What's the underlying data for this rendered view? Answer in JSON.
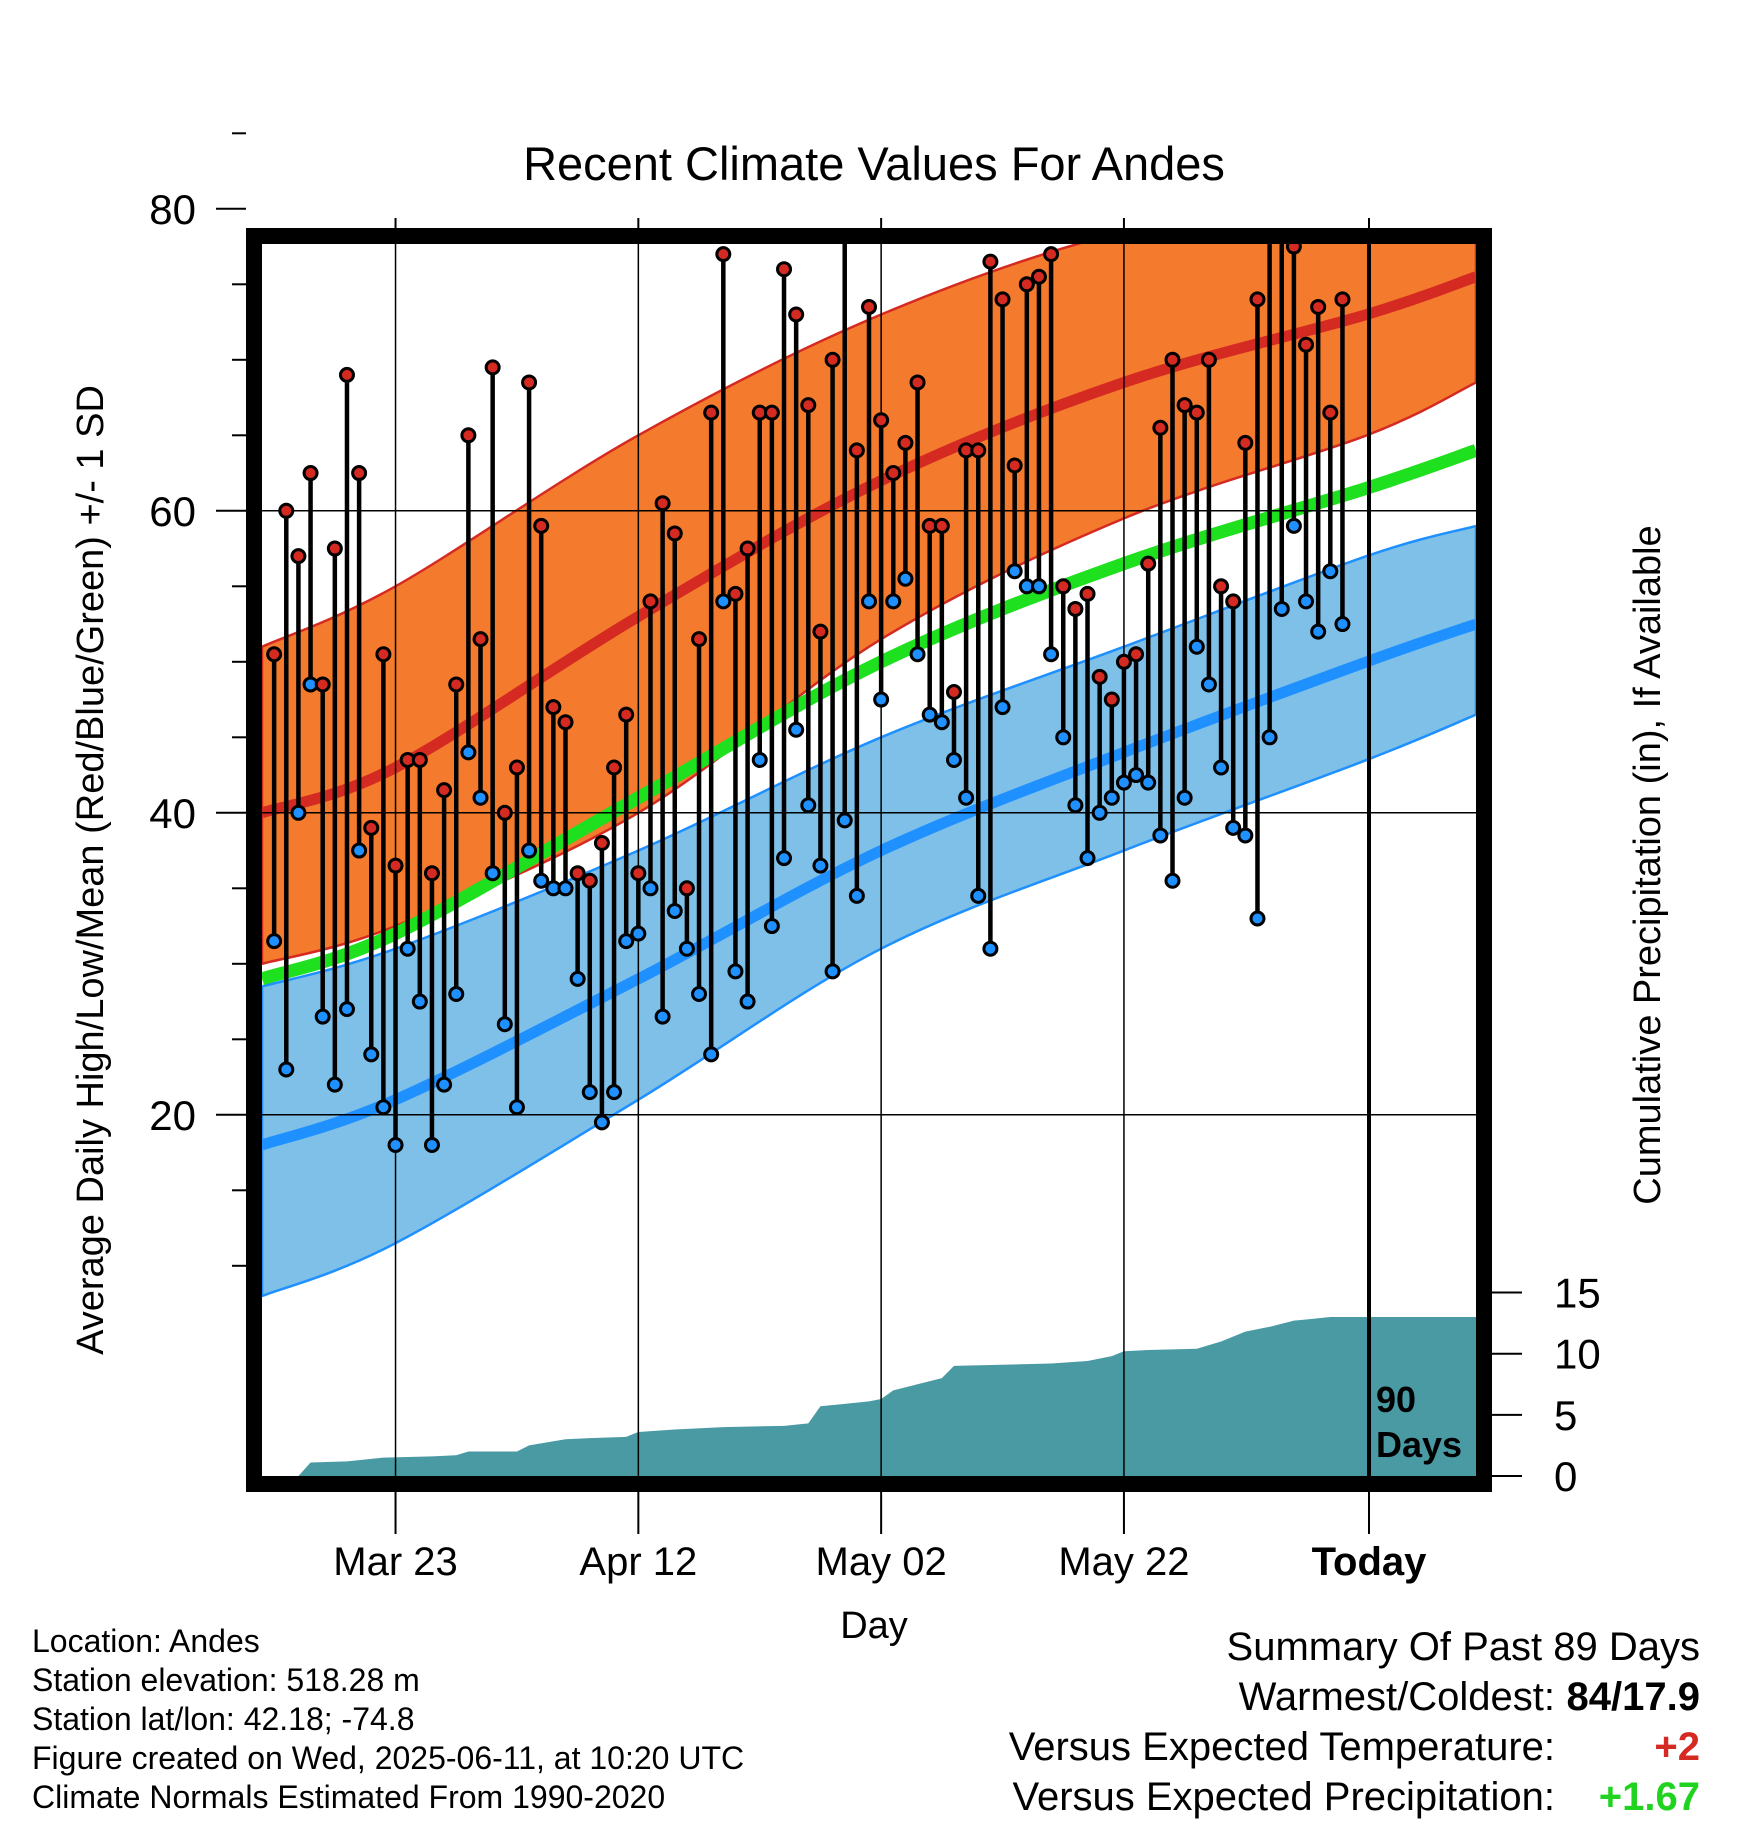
{
  "chart_data": {
    "type": "line",
    "title": "Recent Climate Values For Andes",
    "xlabel": "Day",
    "ylabel": "Average Daily High/Low/Mean (Red/Blue/Green) +/- 1 SD",
    "y2label": "Cumulative Precipitation (in), If Available",
    "ylim": [
      8,
      89
    ],
    "y2lim": [
      0,
      53
    ],
    "yticks": [
      20,
      40,
      60,
      80
    ],
    "y2ticks": [
      0,
      5,
      10,
      15
    ],
    "xlim": [
      "Mar 12",
      "Jun 20"
    ],
    "x_tick_labels": [
      "Mar 23",
      "Apr 12",
      "May 02",
      "May 22",
      "Today"
    ],
    "today_label": "90\nDays",
    "grid": true,
    "colors": {
      "high_band": "#f47b2e",
      "high_line": "#d52a22",
      "low_band": "#7fc0e8",
      "low_line": "#1e90ff",
      "mean_line": "#1ee01e",
      "precip": "#4a9aa4",
      "high_dot": "#d52a22",
      "low_dot": "#1e90ff"
    },
    "normal_high": [
      {
        "date": "Mar 12",
        "mean": 40.0,
        "lower": 30.0,
        "upper": 51.0
      },
      {
        "date": "Mar 23",
        "mean": 43.0,
        "lower": 32.5,
        "upper": 55.0
      },
      {
        "date": "Apr 12",
        "mean": 53.0,
        "lower": 40.0,
        "upper": 65.0
      },
      {
        "date": "May 02",
        "mean": 62.0,
        "lower": 51.5,
        "upper": 73.0
      },
      {
        "date": "May 22",
        "mean": 68.5,
        "lower": 59.5,
        "upper": 78.5
      },
      {
        "date": "Jun 11",
        "mean": 73.0,
        "lower": 65.0,
        "upper": 81.0
      },
      {
        "date": "Jun 20",
        "mean": 75.5,
        "lower": 68.5,
        "upper": 82.5
      }
    ],
    "normal_low": [
      {
        "date": "Mar 12",
        "mean": 18.0,
        "lower": 8.0,
        "upper": 28.5
      },
      {
        "date": "Mar 23",
        "mean": 21.0,
        "lower": 11.5,
        "upper": 31.0
      },
      {
        "date": "Apr 12",
        "mean": 29.0,
        "lower": 21.0,
        "upper": 37.5
      },
      {
        "date": "May 02",
        "mean": 37.5,
        "lower": 31.0,
        "upper": 45.0
      },
      {
        "date": "May 22",
        "mean": 44.0,
        "lower": 37.5,
        "upper": 51.0
      },
      {
        "date": "Jun 11",
        "mean": 50.0,
        "lower": 43.5,
        "upper": 57.0
      },
      {
        "date": "Jun 20",
        "mean": 52.5,
        "lower": 46.5,
        "upper": 59.0
      }
    ],
    "normal_mean": [
      {
        "date": "Mar 12",
        "value": 29.0
      },
      {
        "date": "Mar 23",
        "value": 32.0
      },
      {
        "date": "Apr 12",
        "value": 41.0
      },
      {
        "date": "May 02",
        "value": 50.0
      },
      {
        "date": "May 22",
        "value": 56.5
      },
      {
        "date": "Jun 11",
        "value": 61.5
      },
      {
        "date": "Jun 20",
        "value": 64.0
      }
    ],
    "daily": [
      {
        "date": "Mar 13",
        "high": 50.5,
        "low": 31.5
      },
      {
        "date": "Mar 14",
        "high": 60.0,
        "low": 23.0
      },
      {
        "date": "Mar 15",
        "high": 57.0,
        "low": 40.0
      },
      {
        "date": "Mar 16",
        "high": 62.5,
        "low": 48.5
      },
      {
        "date": "Mar 17",
        "high": 48.5,
        "low": 26.5
      },
      {
        "date": "Mar 18",
        "high": 57.5,
        "low": 22.0
      },
      {
        "date": "Mar 19",
        "high": 69.0,
        "low": 27.0
      },
      {
        "date": "Mar 20",
        "high": 62.5,
        "low": 37.5
      },
      {
        "date": "Mar 21",
        "high": 39.0,
        "low": 24.0
      },
      {
        "date": "Mar 22",
        "high": 50.5,
        "low": 20.5
      },
      {
        "date": "Mar 23",
        "high": 36.5,
        "low": 18.0
      },
      {
        "date": "Mar 24",
        "high": 43.5,
        "low": 31.0
      },
      {
        "date": "Mar 25",
        "high": 43.5,
        "low": 27.5
      },
      {
        "date": "Mar 26",
        "high": 36.0,
        "low": 18.0
      },
      {
        "date": "Mar 27",
        "high": 41.5,
        "low": 22.0
      },
      {
        "date": "Mar 28",
        "high": 48.5,
        "low": 28.0
      },
      {
        "date": "Mar 29",
        "high": 65.0,
        "low": 44.0
      },
      {
        "date": "Mar 30",
        "high": 51.5,
        "low": 41.0
      },
      {
        "date": "Mar 31",
        "high": 69.5,
        "low": 36.0
      },
      {
        "date": "Apr 01",
        "high": 40.0,
        "low": 26.0
      },
      {
        "date": "Apr 02",
        "high": 43.0,
        "low": 20.5
      },
      {
        "date": "Apr 03",
        "high": 68.5,
        "low": 37.5
      },
      {
        "date": "Apr 04",
        "high": 59.0,
        "low": 35.5
      },
      {
        "date": "Apr 05",
        "high": 47.0,
        "low": 35.0
      },
      {
        "date": "Apr 06",
        "high": 46.0,
        "low": 35.0
      },
      {
        "date": "Apr 07",
        "high": 36.0,
        "low": 29.0
      },
      {
        "date": "Apr 08",
        "high": 35.5,
        "low": 21.5
      },
      {
        "date": "Apr 09",
        "high": 38.0,
        "low": 19.5
      },
      {
        "date": "Apr 10",
        "high": 43.0,
        "low": 21.5
      },
      {
        "date": "Apr 11",
        "high": 46.5,
        "low": 31.5
      },
      {
        "date": "Apr 12",
        "high": 36.0,
        "low": 32.0
      },
      {
        "date": "Apr 13",
        "high": 54.0,
        "low": 35.0
      },
      {
        "date": "Apr 14",
        "high": 60.5,
        "low": 26.5
      },
      {
        "date": "Apr 15",
        "high": 58.5,
        "low": 33.5
      },
      {
        "date": "Apr 16",
        "high": 35.0,
        "low": 31.0
      },
      {
        "date": "Apr 17",
        "high": 51.5,
        "low": 28.0
      },
      {
        "date": "Apr 18",
        "high": 66.5,
        "low": 24.0
      },
      {
        "date": "Apr 19",
        "high": 77.0,
        "low": 54.0
      },
      {
        "date": "Apr 20",
        "high": 54.5,
        "low": 29.5
      },
      {
        "date": "Apr 21",
        "high": 57.5,
        "low": 27.5
      },
      {
        "date": "Apr 22",
        "high": 66.5,
        "low": 43.5
      },
      {
        "date": "Apr 23",
        "high": 66.5,
        "low": 32.5
      },
      {
        "date": "Apr 24",
        "high": 76.0,
        "low": 37.0
      },
      {
        "date": "Apr 25",
        "high": 73.0,
        "low": 45.5
      },
      {
        "date": "Apr 26",
        "high": 67.0,
        "low": 40.5
      },
      {
        "date": "Apr 27",
        "high": 52.0,
        "low": 36.5
      },
      {
        "date": "Apr 28",
        "high": 70.0,
        "low": 29.5
      },
      {
        "date": "Apr 29",
        "high": 79.0,
        "low": 39.5
      },
      {
        "date": "Apr 30",
        "high": 64.0,
        "low": 34.5
      },
      {
        "date": "May 01",
        "high": 73.5,
        "low": 54.0
      },
      {
        "date": "May 02",
        "high": 66.0,
        "low": 47.5
      },
      {
        "date": "May 03",
        "high": 62.5,
        "low": 54.0
      },
      {
        "date": "May 04",
        "high": 64.5,
        "low": 55.5
      },
      {
        "date": "May 05",
        "high": 68.5,
        "low": 50.5
      },
      {
        "date": "May 06",
        "high": 59.0,
        "low": 46.5
      },
      {
        "date": "May 07",
        "high": 59.0,
        "low": 46.0
      },
      {
        "date": "May 08",
        "high": 48.0,
        "low": 43.5
      },
      {
        "date": "May 09",
        "high": 64.0,
        "low": 41.0
      },
      {
        "date": "May 10",
        "high": 64.0,
        "low": 34.5
      },
      {
        "date": "May 11",
        "high": 76.5,
        "low": 31.0
      },
      {
        "date": "May 12",
        "high": 74.0,
        "low": 47.0
      },
      {
        "date": "May 13",
        "high": 63.0,
        "low": 56.0
      },
      {
        "date": "May 14",
        "high": 75.0,
        "low": 55.0
      },
      {
        "date": "May 15",
        "high": 75.5,
        "low": 55.0
      },
      {
        "date": "May 16",
        "high": 77.0,
        "low": 50.5
      },
      {
        "date": "May 17",
        "high": 55.0,
        "low": 45.0
      },
      {
        "date": "May 18",
        "high": 53.5,
        "low": 40.5
      },
      {
        "date": "May 19",
        "high": 54.5,
        "low": 37.0
      },
      {
        "date": "May 20",
        "high": 49.0,
        "low": 40.0
      },
      {
        "date": "May 21",
        "high": 47.5,
        "low": 41.0
      },
      {
        "date": "May 22",
        "high": 50.0,
        "low": 42.0
      },
      {
        "date": "May 23",
        "high": 50.5,
        "low": 42.5
      },
      {
        "date": "May 24",
        "high": 56.5,
        "low": 42.0
      },
      {
        "date": "May 25",
        "high": 65.5,
        "low": 38.5
      },
      {
        "date": "May 26",
        "high": 70.0,
        "low": 35.5
      },
      {
        "date": "May 27",
        "high": 67.0,
        "low": 41.0
      },
      {
        "date": "May 28",
        "high": 66.5,
        "low": 51.0
      },
      {
        "date": "May 29",
        "high": 70.0,
        "low": 48.5
      },
      {
        "date": "May 30",
        "high": 55.0,
        "low": 43.0
      },
      {
        "date": "May 31",
        "high": 54.0,
        "low": 39.0
      },
      {
        "date": "Jun 01",
        "high": 64.5,
        "low": 38.5
      },
      {
        "date": "Jun 02",
        "high": 74.0,
        "low": 33.0
      },
      {
        "date": "Jun 03",
        "high": 84.0,
        "low": 45.0
      },
      {
        "date": "Jun 04",
        "high": 84.0,
        "low": 53.5
      },
      {
        "date": "Jun 05",
        "high": 77.5,
        "low": 59.0
      },
      {
        "date": "Jun 06",
        "high": 71.0,
        "low": 54.0
      },
      {
        "date": "Jun 07",
        "high": 73.5,
        "low": 52.0
      },
      {
        "date": "Jun 08",
        "high": 66.5,
        "low": 56.0
      },
      {
        "date": "Jun 09",
        "high": 74.0,
        "low": 52.5
      }
    ],
    "cumulative_precip": [
      {
        "date": "Mar 12",
        "value": 0.0
      },
      {
        "date": "Mar 15",
        "value": 0.0
      },
      {
        "date": "Mar 16",
        "value": 1.1
      },
      {
        "date": "Mar 19",
        "value": 1.2
      },
      {
        "date": "Mar 22",
        "value": 1.5
      },
      {
        "date": "Mar 26",
        "value": 1.6
      },
      {
        "date": "Mar 28",
        "value": 1.7
      },
      {
        "date": "Mar 29",
        "value": 2.0
      },
      {
        "date": "Apr 02",
        "value": 2.0
      },
      {
        "date": "Apr 03",
        "value": 2.5
      },
      {
        "date": "Apr 06",
        "value": 3.0
      },
      {
        "date": "Apr 08",
        "value": 3.1
      },
      {
        "date": "Apr 11",
        "value": 3.2
      },
      {
        "date": "Apr 12",
        "value": 3.6
      },
      {
        "date": "Apr 15",
        "value": 3.8
      },
      {
        "date": "Apr 19",
        "value": 4.0
      },
      {
        "date": "Apr 24",
        "value": 4.1
      },
      {
        "date": "Apr 26",
        "value": 4.3
      },
      {
        "date": "Apr 27",
        "value": 5.7
      },
      {
        "date": "Apr 29",
        "value": 5.9
      },
      {
        "date": "May 01",
        "value": 6.1
      },
      {
        "date": "May 02",
        "value": 6.3
      },
      {
        "date": "May 03",
        "value": 7.0
      },
      {
        "date": "May 05",
        "value": 7.5
      },
      {
        "date": "May 07",
        "value": 8.0
      },
      {
        "date": "May 08",
        "value": 9.0
      },
      {
        "date": "May 16",
        "value": 9.2
      },
      {
        "date": "May 19",
        "value": 9.4
      },
      {
        "date": "May 21",
        "value": 9.8
      },
      {
        "date": "May 22",
        "value": 10.2
      },
      {
        "date": "May 24",
        "value": 10.3
      },
      {
        "date": "May 28",
        "value": 10.4
      },
      {
        "date": "May 30",
        "value": 11.0
      },
      {
        "date": "Jun 01",
        "value": 11.8
      },
      {
        "date": "Jun 03",
        "value": 12.2
      },
      {
        "date": "Jun 05",
        "value": 12.7
      },
      {
        "date": "Jun 06",
        "value": 12.8
      },
      {
        "date": "Jun 08",
        "value": 13.0
      },
      {
        "date": "Jun 20",
        "value": 13.0
      }
    ]
  },
  "info": {
    "location": "Location: Andes",
    "elevation": "Station elevation: 518.28 m",
    "latlon": "Station lat/lon: 42.18; -74.8",
    "created": "Figure created on Wed, 2025-06-11, at 10:20 UTC",
    "normals": "Climate Normals Estimated From 1990-2020"
  },
  "summary": {
    "heading": "Summary Of Past 89 Days",
    "warmest_coldest_label": "Warmest/Coldest:",
    "warmest_coldest_value": "84/17.9",
    "temp_label": "Versus Expected Temperature:",
    "temp_value": "+2",
    "precip_label": "Versus Expected Precipitation:",
    "precip_value": "+1.67"
  }
}
